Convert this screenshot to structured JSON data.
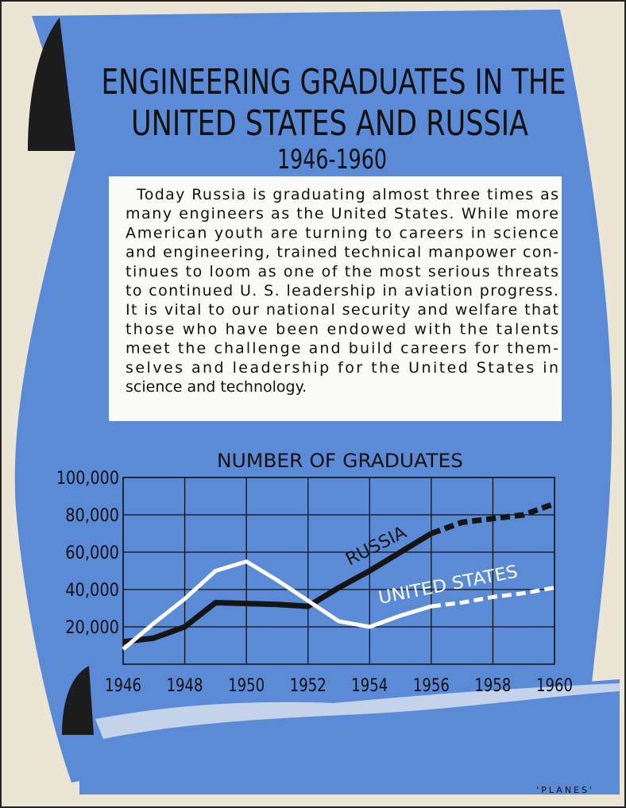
{
  "header": {
    "title_lines": [
      "ENGINEERING GRADUATES IN THE",
      "UNITED STATES AND RUSSIA"
    ],
    "subtitle": "1946-1960"
  },
  "body_lines": [
    "Today Russia is graduating almost three times as",
    "many engineers as the United States.  While more",
    "American youth are turning to careers in science",
    "and engineering, trained technical manpower con-",
    "tinues to loom as one of the most serious threats",
    "to continued U. S. leadership in aviation progress.",
    "It is vital to our national security and welfare that",
    "those who have been endowed with the talents",
    "meet the challenge and build careers for them-",
    "selves and leadership for the United States in",
    "science and technology."
  ],
  "credit": "'PLANES'",
  "chart_data": {
    "type": "line",
    "title": "NUMBER OF GRADUATES",
    "x": [
      1946,
      1947,
      1948,
      1949,
      1950,
      1951,
      1952,
      1953,
      1954,
      1955,
      1956,
      1957,
      1958,
      1959,
      1960
    ],
    "series": [
      {
        "name": "RUSSIA",
        "color": "#151515",
        "dashed_from": 1956,
        "values": [
          12000,
          14000,
          20000,
          33000,
          32500,
          32000,
          31000,
          41000,
          50000,
          60000,
          70000,
          76000,
          78000,
          80000,
          86000
        ]
      },
      {
        "name": "UNITED STATES",
        "color": "#ffffff",
        "dashed_from": 1956,
        "values": [
          8000,
          22000,
          35000,
          50000,
          55000,
          45000,
          34000,
          23000,
          20000,
          26000,
          31000,
          33000,
          36000,
          38000,
          41000
        ]
      }
    ],
    "xlim": [
      1946,
      1960
    ],
    "xticks": [
      1946,
      1948,
      1950,
      1952,
      1954,
      1956,
      1958,
      1960
    ],
    "ylim": [
      0,
      100000
    ],
    "yticks": [
      {
        "value": 20000,
        "label": "20,000"
      },
      {
        "value": 40000,
        "label": "40,000"
      },
      {
        "value": 60000,
        "label": "60,000"
      },
      {
        "value": 80000,
        "label": "80,000"
      },
      {
        "value": 100000,
        "label": "100,000"
      }
    ],
    "grid": true
  }
}
